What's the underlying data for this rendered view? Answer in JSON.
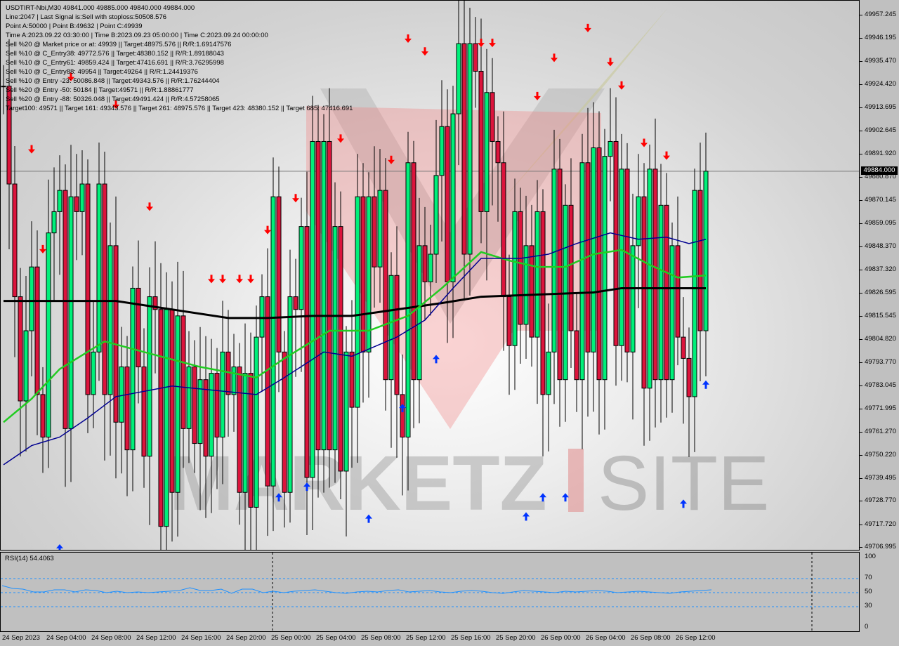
{
  "info": {
    "lines": [
      "USDTIRT-Nbi,M30  49841.000 49885.000 49840.000 49884.000",
      "Line:2047 | Last Signal is:Sell with stoploss:50508.576",
      "Point A:50000 | Point B:49632 | Point C:49939",
      "Time A:2023.09.22 03:30:00 | Time B:2023.09.23 05:00:00 | Time C:2023.09.24 00:00:00",
      "Sell %20 @ Market price or at: 49939 || Target:48975.576 || R/R:1.69147576",
      "Sell %10 @ C_Entry38: 49772.576 || Target:48380.152 || R/R:1.89188043",
      "Sell %10 @ C_Entry61: 49859.424 || Target:47416.691 || R/R:3.76295998",
      "Sell %10 @ C_Entry88: 49954 || Target:49264 || R/R:1.24419376",
      "Sell %10 @ Entry -23: 50086.848 || Target:49343.576 || R/R:1.76244404",
      "Sell %20 @ Entry -50: 50184 || Target:49571 || R/R:1.88861777",
      "Sell %20 @ Entry -88: 50326.048 || Target:49491.424 || R/R:4.57258065",
      "Target100: 49571 || Target 161: 49343.576 || Target 261: 48975.576 || Target 423: 48380.152 || Target 685: 47416.691"
    ]
  },
  "watermark": {
    "text_left": "MARKETZ",
    "text_right": "SITE"
  },
  "chart_data": {
    "type": "candlestick",
    "symbol": "USDTIRT-Nbi,M30",
    "ylim": [
      49706.995,
      49957.245
    ],
    "y_ticks": [
      "49957.245",
      "49946.195",
      "49935.470",
      "49924.420",
      "49913.695",
      "49902.645",
      "49891.920",
      "49880.870",
      "49870.145",
      "49859.095",
      "49848.370",
      "49837.320",
      "49826.595",
      "49815.545",
      "49804.820",
      "49793.770",
      "49783.045",
      "49771.995",
      "49761.270",
      "49750.220",
      "49739.495",
      "49728.770",
      "49717.720",
      "49706.995"
    ],
    "current_price": "49884.000",
    "current_price_value": 49884,
    "x_ticks": [
      "24 Sep 2023",
      "24 Sep 04:00",
      "24 Sep 08:00",
      "24 Sep 12:00",
      "24 Sep 16:00",
      "24 Sep 20:00",
      "25 Sep 00:00",
      "25 Sep 04:00",
      "25 Sep 08:00",
      "25 Sep 12:00",
      "25 Sep 16:00",
      "25 Sep 20:00",
      "26 Sep 00:00",
      "26 Sep 04:00",
      "26 Sep 08:00",
      "26 Sep 12:00"
    ],
    "colors": {
      "bull": "#00f07a",
      "bear": "#dc143c",
      "ma_slow": "#000000",
      "ma_mid": "#22cc22",
      "ma_fast": "#000090",
      "sell_arrow": "#ff0000",
      "buy_arrow": "#0033ff",
      "rsi": "#1e90ff"
    },
    "first_open": 49924,
    "closes": [
      49924,
      49878,
      49825,
      49776,
      49809,
      49839,
      49779,
      49759,
      49855,
      49865,
      49875,
      49763,
      49872,
      49865,
      49878,
      49779,
      49799,
      49878,
      49779,
      49849,
      49766,
      49792,
      49753,
      49829,
      49792,
      49750,
      49825,
      49819,
      49717,
      49819,
      49733,
      49816,
      49763,
      49792,
      49756,
      49786,
      49750,
      49789,
      49759,
      49799,
      49779,
      49792,
      49733,
      49789,
      49726,
      49806,
      49825,
      49736,
      49872,
      49799,
      49733,
      49825,
      49819,
      49858,
      49740,
      49898,
      49753,
      49898,
      49753,
      49858,
      49743,
      49799,
      49773,
      49872,
      49799,
      49872,
      49839,
      49875,
      49786,
      49835,
      49779,
      49759,
      49888,
      49786,
      49849,
      49832,
      49845,
      49882,
      49905,
      49832,
      49911,
      49944,
      49845,
      49944,
      49931,
      49865,
      49921,
      49898,
      49888,
      49825,
      49802,
      49865,
      49812,
      49849,
      49806,
      49865,
      49779,
      49799,
      49885,
      49786,
      49868,
      49809,
      49786,
      49888,
      49799,
      49895,
      49786,
      49891,
      49898,
      49802,
      49885,
      49799,
      49849,
      49872,
      49782,
      49885,
      49786,
      49868,
      49786,
      49849,
      49806,
      49796,
      49778,
      49875,
      49809,
      49884
    ],
    "ma_slow": [
      [
        0,
        49823
      ],
      [
        20,
        49823
      ],
      [
        30,
        49819
      ],
      [
        40,
        49815
      ],
      [
        47,
        49815
      ],
      [
        55,
        49816
      ],
      [
        62,
        49816
      ],
      [
        70,
        49819
      ],
      [
        78,
        49822
      ],
      [
        85,
        49825
      ],
      [
        95,
        49826
      ],
      [
        105,
        49827
      ],
      [
        110,
        49829
      ],
      [
        125,
        49829
      ]
    ],
    "ma_mid": [
      [
        0,
        49766
      ],
      [
        5,
        49777
      ],
      [
        10,
        49791
      ],
      [
        18,
        49804
      ],
      [
        25,
        49799
      ],
      [
        35,
        49792
      ],
      [
        45,
        49787
      ],
      [
        50,
        49796
      ],
      [
        58,
        49809
      ],
      [
        65,
        49809
      ],
      [
        72,
        49816
      ],
      [
        78,
        49829
      ],
      [
        85,
        49846
      ],
      [
        90,
        49842
      ],
      [
        95,
        49839
      ],
      [
        100,
        49839
      ],
      [
        105,
        49845
      ],
      [
        110,
        49847
      ],
      [
        115,
        49840
      ],
      [
        120,
        49834
      ],
      [
        125,
        49835
      ]
    ],
    "ma_fast": [
      [
        0,
        49746
      ],
      [
        5,
        49755
      ],
      [
        10,
        49759
      ],
      [
        15,
        49768
      ],
      [
        20,
        49778
      ],
      [
        30,
        49783
      ],
      [
        45,
        49779
      ],
      [
        50,
        49787
      ],
      [
        57,
        49799
      ],
      [
        62,
        49797
      ],
      [
        70,
        49806
      ],
      [
        75,
        49814
      ],
      [
        80,
        49829
      ],
      [
        85,
        49843
      ],
      [
        92,
        49843
      ],
      [
        97,
        49845
      ],
      [
        102,
        49850
      ],
      [
        108,
        49855
      ],
      [
        113,
        49852
      ],
      [
        118,
        49853
      ],
      [
        122,
        49850
      ],
      [
        125,
        49852
      ]
    ],
    "sell_signals": [
      [
        5,
        49894
      ],
      [
        7,
        49847
      ],
      [
        12,
        49928
      ],
      [
        20,
        49915
      ],
      [
        26,
        49867
      ],
      [
        37,
        49833
      ],
      [
        39,
        49833
      ],
      [
        42,
        49833
      ],
      [
        44,
        49833
      ],
      [
        47,
        49856
      ],
      [
        52,
        49871
      ],
      [
        60,
        49899
      ],
      [
        69,
        49889
      ],
      [
        72,
        49946
      ],
      [
        75,
        49940
      ],
      [
        85,
        49944
      ],
      [
        87,
        49944
      ],
      [
        95,
        49919
      ],
      [
        98,
        49937
      ],
      [
        104,
        49951
      ],
      [
        108,
        49935
      ],
      [
        110,
        49924
      ],
      [
        114,
        49897
      ],
      [
        118,
        49891
      ]
    ],
    "buy_signals": [
      [
        10,
        49707
      ],
      [
        49,
        49731
      ],
      [
        54,
        49736
      ],
      [
        65,
        49721
      ],
      [
        71,
        49773
      ],
      [
        77,
        49796
      ],
      [
        93,
        49722
      ],
      [
        96,
        49731
      ],
      [
        100,
        49731
      ],
      [
        121,
        49728
      ],
      [
        125,
        49784
      ]
    ],
    "rsi": {
      "label": "RSI(14) 54.4063",
      "levels": [
        70,
        50,
        30
      ],
      "y_ticks": [
        "100",
        "70",
        "50",
        "30",
        "0"
      ],
      "values": [
        60,
        56,
        55,
        51,
        51,
        54,
        54,
        51,
        54,
        53,
        50,
        52,
        50,
        51,
        50,
        51,
        52,
        53,
        57,
        53,
        53,
        55,
        49,
        55,
        55,
        50,
        52,
        50,
        52,
        53,
        54,
        52,
        50,
        49,
        51,
        52,
        51,
        53,
        54,
        51,
        52,
        53,
        51,
        50,
        52,
        53,
        52,
        50,
        49,
        51,
        53,
        52,
        51,
        50,
        52,
        51,
        52,
        53,
        52,
        50,
        51,
        52,
        51,
        50,
        49,
        51,
        52,
        53,
        54
      ]
    }
  }
}
